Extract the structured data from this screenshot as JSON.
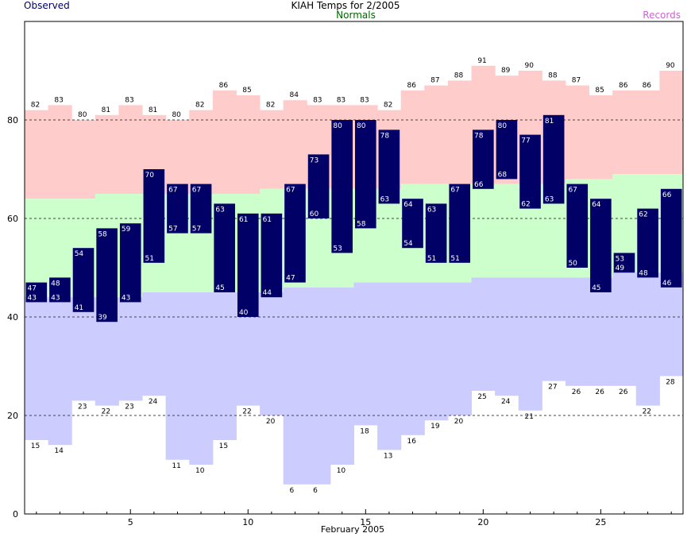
{
  "chart_data": {
    "type": "bar",
    "title": "KIAH Temps for 2/2005",
    "legend": {
      "observed": "Observed",
      "normals": "Normals",
      "records": "Records"
    },
    "xlabel": "February 2005",
    "ylabel": "",
    "xlim": [
      0.5,
      28.5
    ],
    "ylim": [
      0,
      100
    ],
    "x_ticks": [
      5,
      10,
      15,
      20,
      25
    ],
    "y_ticks": [
      0,
      20,
      40,
      60,
      80
    ],
    "gridlines_dashed_at": [
      20,
      40,
      60,
      80
    ],
    "days": [
      1,
      2,
      3,
      4,
      5,
      6,
      7,
      8,
      9,
      10,
      11,
      12,
      13,
      14,
      15,
      16,
      17,
      18,
      19,
      20,
      21,
      22,
      23,
      24,
      25,
      26,
      27,
      28
    ],
    "series": [
      {
        "name": "Records",
        "key": "record_high",
        "values": [
          82,
          83,
          80,
          81,
          83,
          81,
          80,
          82,
          86,
          85,
          82,
          84,
          83,
          83,
          83,
          82,
          86,
          87,
          88,
          91,
          89,
          90,
          88,
          87,
          85,
          86,
          86,
          90
        ]
      },
      {
        "name": "Records",
        "key": "record_low",
        "values": [
          15,
          14,
          23,
          22,
          23,
          24,
          11,
          10,
          15,
          22,
          20,
          6,
          6,
          10,
          18,
          13,
          16,
          19,
          20,
          25,
          24,
          21,
          27,
          26,
          26,
          26,
          22,
          28
        ]
      },
      {
        "name": "Normals",
        "key": "normal_high",
        "values": [
          64,
          64,
          64,
          65,
          65,
          65,
          65,
          65,
          65,
          65,
          66,
          66,
          66,
          66,
          66,
          66,
          67,
          67,
          67,
          67,
          67,
          67,
          67,
          68,
          68,
          69,
          69,
          69
        ]
      },
      {
        "name": "Normals",
        "key": "normal_low",
        "values": [
          44,
          44,
          44,
          44,
          44,
          45,
          45,
          45,
          45,
          45,
          45,
          46,
          46,
          46,
          47,
          47,
          47,
          47,
          47,
          48,
          48,
          48,
          48,
          48,
          48,
          49,
          49,
          49
        ]
      },
      {
        "name": "Observed",
        "key": "observed_high",
        "values": [
          47,
          48,
          54,
          58,
          59,
          70,
          67,
          67,
          63,
          61,
          61,
          67,
          73,
          80,
          80,
          78,
          64,
          63,
          67,
          78,
          80,
          77,
          81,
          67,
          64,
          53,
          62,
          66
        ]
      },
      {
        "name": "Observed",
        "key": "observed_low",
        "values": [
          43,
          43,
          41,
          39,
          43,
          51,
          57,
          57,
          45,
          40,
          44,
          47,
          60,
          53,
          58,
          63,
          54,
          51,
          51,
          66,
          68,
          62,
          63,
          50,
          45,
          49,
          48,
          46
        ]
      }
    ],
    "colors": {
      "records_band": "#ffcccc",
      "normals_band": "#ccffcc",
      "lower_band": "#ccccff",
      "observed_bar": "#000066",
      "observed_label": "#000066",
      "normals_label": "#006600",
      "records_label": "#cc66cc",
      "grid": "#444444"
    }
  }
}
